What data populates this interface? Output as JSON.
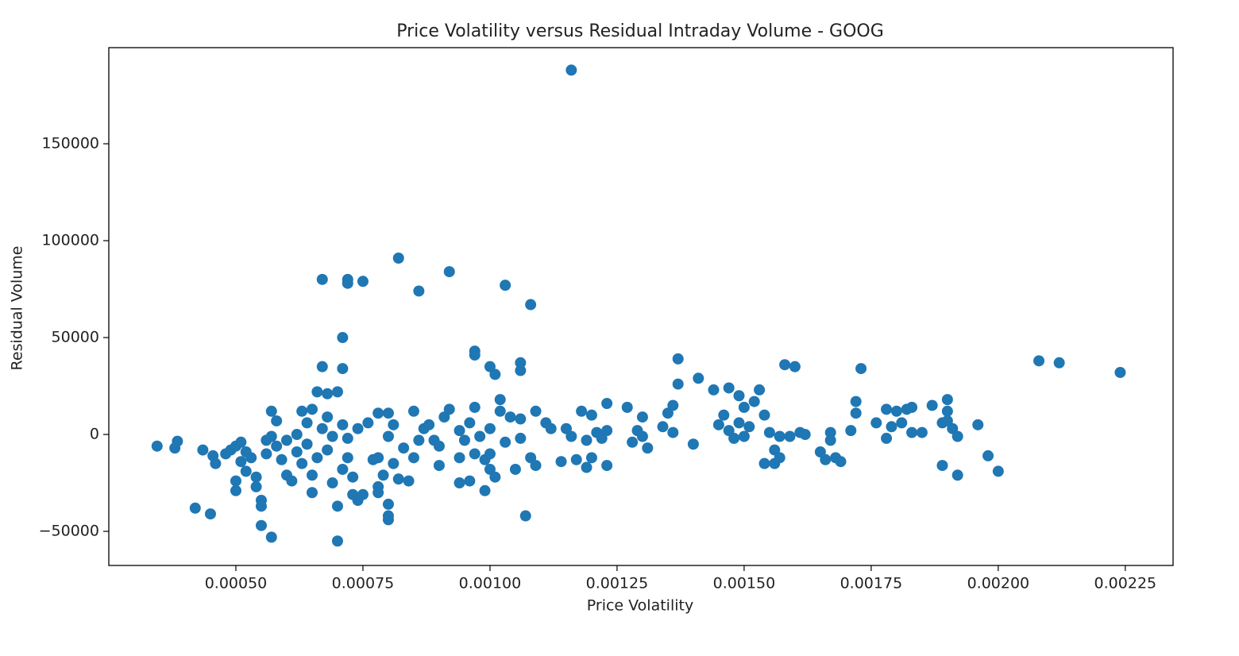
{
  "chart_data": {
    "type": "scatter",
    "title": "Price Volatility versus Residual Intraday Volume - GOOG",
    "xlabel": "Price Volatility",
    "ylabel": "Residual Volume",
    "color": "#1f77b4",
    "xlim": [
      0.00025,
      0.002344
    ],
    "ylim": [
      -67600,
      199600
    ],
    "xticks": [
      {
        "value": 0.0005,
        "label": "0.00050"
      },
      {
        "value": 0.00075,
        "label": "0.00075"
      },
      {
        "value": 0.001,
        "label": "0.00100"
      },
      {
        "value": 0.00125,
        "label": "0.00125"
      },
      {
        "value": 0.0015,
        "label": "0.00150"
      },
      {
        "value": 0.00175,
        "label": "0.00175"
      },
      {
        "value": 0.002,
        "label": "0.00200"
      },
      {
        "value": 0.00225,
        "label": "0.00225"
      }
    ],
    "yticks": [
      {
        "value": -50000,
        "label": "−50000"
      },
      0,
      50000,
      100000,
      150000
    ],
    "x": [
      0.000345,
      0.00038,
      0.000385,
      0.00042,
      0.000435,
      0.00045,
      0.000455,
      0.00046,
      0.00048,
      0.00049,
      0.0005,
      0.0005,
      0.0005,
      0.00051,
      0.00051,
      0.00052,
      0.00052,
      0.00053,
      0.00054,
      0.00054,
      0.00055,
      0.00055,
      0.00055,
      0.00056,
      0.00056,
      0.00057,
      0.00057,
      0.00057,
      0.00058,
      0.00058,
      0.00059,
      0.0006,
      0.0006,
      0.00061,
      0.00062,
      0.00062,
      0.00063,
      0.00063,
      0.00064,
      0.00064,
      0.00065,
      0.00065,
      0.00065,
      0.00066,
      0.00066,
      0.00067,
      0.00067,
      0.00067,
      0.00068,
      0.00068,
      0.00068,
      0.00069,
      0.00069,
      0.0007,
      0.0007,
      0.0007,
      0.00071,
      0.00071,
      0.00071,
      0.00071,
      0.00072,
      0.00072,
      0.00072,
      0.00072,
      0.00073,
      0.00073,
      0.00074,
      0.00074,
      0.00075,
      0.00075,
      0.00076,
      0.00077,
      0.00078,
      0.00078,
      0.00078,
      0.00078,
      0.00079,
      0.0008,
      0.0008,
      0.0008,
      0.0008,
      0.0008,
      0.00081,
      0.00081,
      0.00082,
      0.00082,
      0.00083,
      0.00084,
      0.00085,
      0.00085,
      0.00086,
      0.00086,
      0.00087,
      0.00088,
      0.00089,
      0.0009,
      0.0009,
      0.00091,
      0.00092,
      0.00092,
      0.00094,
      0.00094,
      0.00094,
      0.00095,
      0.00096,
      0.00096,
      0.00097,
      0.00097,
      0.00097,
      0.00097,
      0.00098,
      0.00099,
      0.00099,
      0.001,
      0.001,
      0.001,
      0.001,
      0.00101,
      0.00101,
      0.00102,
      0.00102,
      0.00103,
      0.00103,
      0.00104,
      0.00105,
      0.00106,
      0.00106,
      0.00106,
      0.00106,
      0.00107,
      0.00108,
      0.00108,
      0.00109,
      0.00109,
      0.00111,
      0.00112,
      0.00114,
      0.00115,
      0.00116,
      0.00116,
      0.00117,
      0.00118,
      0.00119,
      0.00119,
      0.0012,
      0.0012,
      0.00121,
      0.00122,
      0.00123,
      0.00123,
      0.00123,
      0.00127,
      0.00128,
      0.00129,
      0.0013,
      0.0013,
      0.00131,
      0.00134,
      0.00135,
      0.00136,
      0.00136,
      0.00137,
      0.00137,
      0.0014,
      0.00141,
      0.00144,
      0.00145,
      0.00146,
      0.00147,
      0.00147,
      0.00148,
      0.00149,
      0.00149,
      0.0015,
      0.0015,
      0.00151,
      0.00152,
      0.00153,
      0.00154,
      0.00154,
      0.00155,
      0.00156,
      0.00156,
      0.00157,
      0.00157,
      0.00158,
      0.00159,
      0.0016,
      0.00161,
      0.00162,
      0.00165,
      0.00166,
      0.00167,
      0.00167,
      0.00168,
      0.00169,
      0.00171,
      0.00172,
      0.00172,
      0.00173,
      0.00176,
      0.00178,
      0.00178,
      0.00179,
      0.0018,
      0.00181,
      0.00182,
      0.00183,
      0.00183,
      0.00185,
      0.00187,
      0.00189,
      0.00189,
      0.0019,
      0.0019,
      0.0019,
      0.00191,
      0.00192,
      0.00192,
      0.00196,
      0.00198,
      0.002,
      0.00208,
      0.00212,
      0.00224
    ],
    "values": [
      -6000,
      -7000,
      -3500,
      -38000,
      -8000,
      -41000,
      -11000,
      -15000,
      -10000,
      -8000,
      -6000,
      -24000,
      -29000,
      -4000,
      -14000,
      -19000,
      -9000,
      -12000,
      -22000,
      -27000,
      -34000,
      -37000,
      -47000,
      -3000,
      -10000,
      -53000,
      -1000,
      12000,
      7000,
      -6000,
      -13000,
      -21000,
      -3000,
      -24000,
      -9000,
      0,
      12000,
      -15000,
      -5000,
      6000,
      13000,
      -30000,
      -21000,
      -12000,
      22000,
      35000,
      80000,
      3000,
      21000,
      -8000,
      9000,
      -1000,
      -25000,
      -55000,
      -37000,
      22000,
      50000,
      34000,
      -18000,
      5000,
      -2000,
      -12000,
      80000,
      78000,
      -22000,
      -31000,
      -34000,
      3000,
      79000,
      -31000,
      6000,
      -13000,
      11000,
      -12000,
      -27000,
      -30000,
      -21000,
      -36000,
      -44000,
      -42000,
      11000,
      -1000,
      5000,
      -15000,
      91000,
      -23000,
      -7000,
      -24000,
      -12000,
      12000,
      74000,
      -3000,
      3000,
      5000,
      -3000,
      -6000,
      -16000,
      9000,
      84000,
      13000,
      -25000,
      -12000,
      2000,
      -3000,
      6000,
      -24000,
      43000,
      41000,
      14000,
      -10000,
      -1000,
      -29000,
      -13000,
      35000,
      -18000,
      -10000,
      3000,
      31000,
      -22000,
      18000,
      12000,
      77000,
      -4000,
      9000,
      -18000,
      37000,
      33000,
      8000,
      -2000,
      -42000,
      67000,
      -12000,
      12000,
      -16000,
      6000,
      3000,
      -14000,
      3000,
      188000,
      -1000,
      -13000,
      12000,
      -3000,
      -17000,
      10000,
      -12000,
      1000,
      -2000,
      16000,
      -16000,
      2000,
      14000,
      -4000,
      2000,
      -1000,
      9000,
      -7000,
      4000,
      11000,
      15000,
      1000,
      26000,
      39000,
      -5000,
      29000,
      23000,
      5000,
      10000,
      24000,
      2000,
      -2000,
      20000,
      6000,
      14000,
      -1000,
      4000,
      17000,
      23000,
      10000,
      -15000,
      1000,
      -8000,
      -15000,
      -12000,
      -1000,
      36000,
      -1000,
      35000,
      1000,
      0,
      -9000,
      -13000,
      -3000,
      1000,
      -12000,
      -14000,
      2000,
      11000,
      17000,
      34000,
      6000,
      -2000,
      13000,
      4000,
      12000,
      6000,
      13000,
      1000,
      14000,
      1000,
      15000,
      -16000,
      6000,
      18000,
      12000,
      7000,
      3000,
      -21000,
      -1000,
      5000,
      -11000,
      -19000,
      38000,
      37000,
      32000
    ]
  }
}
